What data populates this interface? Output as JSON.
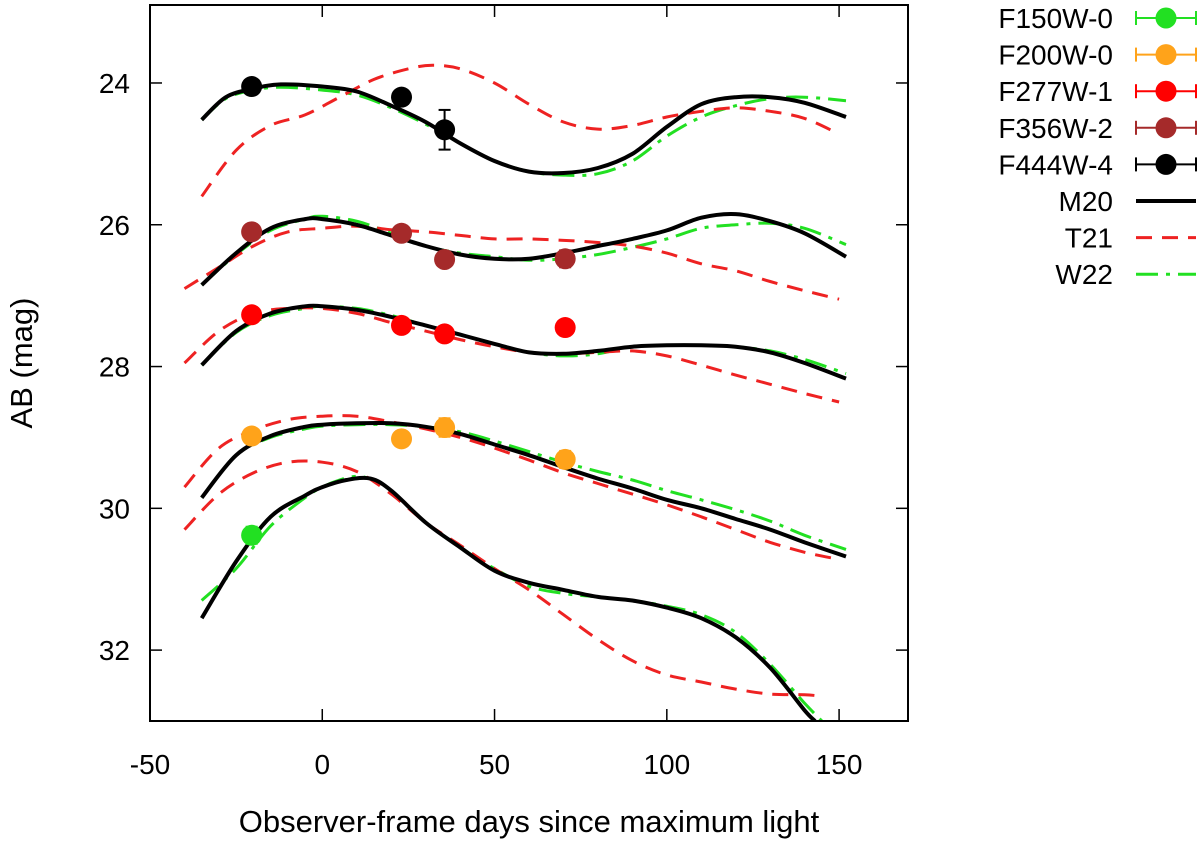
{
  "chart_data": {
    "type": "line",
    "title": "",
    "xlabel": "Observer-frame days since maximum light",
    "ylabel": "AB (mag)",
    "xlim": [
      -50,
      170
    ],
    "ylim": [
      33,
      22.9
    ],
    "y_inverted": true,
    "grid": false,
    "legend_position": "outside-right-top",
    "x_ticks": [
      -50,
      0,
      50,
      100,
      150
    ],
    "x_tick_labels": [
      "-50",
      "0",
      "50",
      "100",
      "150"
    ],
    "y_ticks": [
      24,
      26,
      28,
      30,
      32
    ],
    "y_tick_labels": [
      "24",
      "26",
      "28",
      "30",
      "32"
    ],
    "observations": [
      {
        "name": "F150W-0",
        "color": "#22e022",
        "points": [
          {
            "x": -20.5,
            "y": 30.38,
            "err": 0.12
          }
        ]
      },
      {
        "name": "F200W-0",
        "color": "#ffa31a",
        "points": [
          {
            "x": -20.5,
            "y": 28.98,
            "err": 0.05
          },
          {
            "x": 23,
            "y": 29.02,
            "err": 0.06
          },
          {
            "x": 35.5,
            "y": 28.86,
            "err": 0.13
          },
          {
            "x": 70.5,
            "y": 29.31,
            "err": 0.12
          }
        ]
      },
      {
        "name": "F277W-1",
        "color": "#ff0000",
        "points": [
          {
            "x": -20.5,
            "y": 27.27,
            "err": 0.05
          },
          {
            "x": 23,
            "y": 27.42,
            "err": 0.06
          },
          {
            "x": 35.5,
            "y": 27.54,
            "err": 0.07
          },
          {
            "x": 70.5,
            "y": 27.45,
            "err": 0.1
          }
        ]
      },
      {
        "name": "F356W-2",
        "color": "#a52a2a",
        "points": [
          {
            "x": -20.5,
            "y": 26.1,
            "err": 0.05
          },
          {
            "x": 23,
            "y": 26.12,
            "err": 0.06
          },
          {
            "x": 35.5,
            "y": 26.49,
            "err": 0.1
          },
          {
            "x": 70.5,
            "y": 26.48,
            "err": 0.12
          }
        ]
      },
      {
        "name": "F444W-4",
        "color": "#000000",
        "points": [
          {
            "x": -20.5,
            "y": 24.05,
            "err": 0.05
          },
          {
            "x": 23,
            "y": 24.2,
            "err": 0.06
          },
          {
            "x": 35.5,
            "y": 24.66,
            "err": 0.28
          }
        ]
      }
    ],
    "models": [
      {
        "name": "M20",
        "color": "#000000",
        "style": "solid",
        "curves": [
          {
            "x": [
              -35,
              -28,
              -20,
              -12,
              0,
              10,
              20,
              30,
              40,
              50,
              60,
              70,
              80,
              90,
              100,
              110,
              120,
              130,
              140,
              152
            ],
            "y": [
              24.52,
              24.2,
              24.08,
              24.02,
              24.05,
              24.12,
              24.32,
              24.55,
              24.85,
              25.1,
              25.25,
              25.27,
              25.2,
              25.0,
              24.62,
              24.3,
              24.2,
              24.2,
              24.28,
              24.48
            ]
          },
          {
            "x": [
              -35,
              -25,
              -15,
              -5,
              0,
              10,
              20,
              30,
              40,
              50,
              60,
              70,
              80,
              90,
              100,
              110,
              120,
              130,
              140,
              152
            ],
            "y": [
              26.85,
              26.4,
              26.05,
              25.92,
              25.92,
              26.0,
              26.15,
              26.3,
              26.42,
              26.48,
              26.48,
              26.4,
              26.3,
              26.2,
              26.08,
              25.9,
              25.85,
              25.95,
              26.12,
              26.45
            ]
          },
          {
            "x": [
              -35,
              -25,
              -15,
              -5,
              0,
              10,
              20,
              30,
              40,
              50,
              60,
              70,
              80,
              90,
              100,
              110,
              120,
              130,
              140,
              152
            ],
            "y": [
              27.98,
              27.5,
              27.25,
              27.15,
              27.15,
              27.2,
              27.3,
              27.42,
              27.55,
              27.68,
              27.8,
              27.82,
              27.78,
              27.72,
              27.7,
              27.7,
              27.72,
              27.8,
              27.95,
              28.17
            ]
          },
          {
            "x": [
              -35,
              -25,
              -15,
              -5,
              0,
              10,
              20,
              30,
              40,
              50,
              60,
              70,
              80,
              90,
              100,
              110,
              120,
              130,
              140,
              152
            ],
            "y": [
              29.85,
              29.25,
              28.98,
              28.85,
              28.82,
              28.8,
              28.8,
              28.85,
              28.95,
              29.1,
              29.25,
              29.42,
              29.58,
              29.72,
              29.88,
              30.0,
              30.15,
              30.3,
              30.48,
              30.68
            ]
          },
          {
            "x": [
              -35,
              -25,
              -15,
              -5,
              0,
              7,
              14,
              20,
              30,
              40,
              50,
              60,
              70,
              80,
              90,
              100,
              110,
              120,
              130,
              140,
              143
            ],
            "y": [
              31.55,
              30.75,
              30.12,
              29.82,
              29.7,
              29.6,
              29.58,
              29.75,
              30.2,
              30.55,
              30.88,
              31.05,
              31.15,
              31.25,
              31.3,
              31.4,
              31.55,
              31.82,
              32.25,
              32.85,
              33.0
            ]
          }
        ]
      },
      {
        "name": "T21",
        "color": "#ee2222",
        "style": "dashed",
        "curves": [
          {
            "x": [
              -35,
              -25,
              -15,
              -5,
              5,
              15,
              25,
              32,
              40,
              50,
              60,
              70,
              80,
              90,
              100,
              110,
              120,
              130,
              140,
              150
            ],
            "y": [
              25.6,
              24.95,
              24.6,
              24.45,
              24.2,
              23.95,
              23.8,
              23.75,
              23.8,
              24.0,
              24.3,
              24.55,
              24.65,
              24.6,
              24.48,
              24.4,
              24.35,
              24.4,
              24.5,
              24.72
            ]
          },
          {
            "x": [
              -40,
              -30,
              -20,
              -10,
              0,
              10,
              20,
              30,
              40,
              50,
              60,
              70,
              80,
              90,
              100,
              110,
              120,
              130,
              140,
              150
            ],
            "y": [
              26.9,
              26.6,
              26.3,
              26.1,
              26.05,
              26.02,
              26.07,
              26.1,
              26.15,
              26.2,
              26.2,
              26.22,
              26.25,
              26.3,
              26.4,
              26.55,
              26.65,
              26.8,
              26.93,
              27.05
            ]
          },
          {
            "x": [
              -40,
              -30,
              -20,
              -10,
              0,
              10,
              20,
              30,
              40,
              50,
              60,
              70,
              80,
              90,
              100,
              110,
              120,
              130,
              140,
              150
            ],
            "y": [
              27.95,
              27.5,
              27.25,
              27.18,
              27.18,
              27.25,
              27.38,
              27.5,
              27.62,
              27.72,
              27.8,
              27.82,
              27.8,
              27.78,
              27.85,
              27.98,
              28.12,
              28.25,
              28.38,
              28.5
            ]
          },
          {
            "x": [
              -40,
              -30,
              -20,
              -10,
              0,
              10,
              20,
              30,
              40,
              50,
              60,
              70,
              80,
              90,
              100,
              110,
              120,
              130,
              140,
              150
            ],
            "y": [
              29.7,
              29.15,
              28.9,
              28.75,
              28.7,
              28.7,
              28.78,
              28.88,
              29.0,
              29.15,
              29.32,
              29.5,
              29.65,
              29.8,
              29.95,
              30.12,
              30.3,
              30.48,
              30.62,
              30.72
            ]
          },
          {
            "x": [
              -40,
              -30,
              -20,
              -10,
              0,
              10,
              20,
              30,
              40,
              50,
              60,
              70,
              80,
              90,
              100,
              110,
              120,
              130,
              140,
              145
            ],
            "y": [
              30.3,
              29.8,
              29.5,
              29.35,
              29.35,
              29.48,
              29.8,
              30.2,
              30.52,
              30.85,
              31.15,
              31.5,
              31.85,
              32.15,
              32.35,
              32.45,
              32.55,
              32.62,
              32.63,
              32.65
            ]
          }
        ]
      },
      {
        "name": "W22",
        "color": "#22e022",
        "style": "dashdot",
        "curves": [
          {
            "x": [
              -35,
              -28,
              -20,
              -12,
              0,
              10,
              20,
              30,
              40,
              50,
              60,
              70,
              80,
              90,
              100,
              110,
              120,
              130,
              140,
              152
            ],
            "y": [
              24.52,
              24.22,
              24.1,
              24.06,
              24.1,
              24.17,
              24.35,
              24.58,
              24.85,
              25.1,
              25.25,
              25.3,
              25.28,
              25.1,
              24.75,
              24.48,
              24.32,
              24.22,
              24.2,
              24.25
            ]
          },
          {
            "x": [
              -35,
              -25,
              -15,
              -5,
              0,
              10,
              20,
              30,
              40,
              50,
              60,
              70,
              80,
              90,
              100,
              110,
              120,
              130,
              140,
              152
            ],
            "y": [
              26.85,
              26.42,
              26.08,
              25.92,
              25.88,
              25.95,
              26.12,
              26.3,
              26.4,
              26.45,
              26.5,
              26.48,
              26.42,
              26.32,
              26.2,
              26.05,
              26.0,
              25.98,
              26.05,
              26.28
            ]
          },
          {
            "x": [
              -35,
              -25,
              -15,
              -5,
              0,
              10,
              20,
              30,
              40,
              50,
              60,
              70,
              80,
              90,
              100,
              110,
              120,
              130,
              140,
              152
            ],
            "y": [
              27.98,
              27.52,
              27.28,
              27.18,
              27.15,
              27.18,
              27.28,
              27.42,
              27.55,
              27.68,
              27.8,
              27.85,
              27.82,
              27.72,
              27.7,
              27.7,
              27.72,
              27.78,
              27.9,
              28.1
            ]
          },
          {
            "x": [
              -35,
              -25,
              -15,
              -5,
              0,
              10,
              20,
              30,
              40,
              50,
              60,
              70,
              80,
              90,
              100,
              110,
              120,
              130,
              140,
              152
            ],
            "y": [
              29.85,
              29.25,
              29.0,
              28.88,
              28.84,
              28.82,
              28.82,
              28.85,
              28.92,
              29.05,
              29.2,
              29.35,
              29.48,
              29.6,
              29.75,
              29.88,
              30.02,
              30.18,
              30.38,
              30.58
            ]
          },
          {
            "x": [
              -35,
              -25,
              -15,
              -5,
              0,
              5,
              10,
              15,
              20,
              30,
              40,
              50,
              60,
              70,
              80,
              90,
              100,
              110,
              120,
              130,
              140,
              145
            ],
            "y": [
              31.3,
              30.85,
              30.25,
              29.85,
              29.7,
              29.6,
              29.55,
              29.6,
              29.75,
              30.2,
              30.55,
              30.85,
              31.1,
              31.2,
              31.25,
              31.3,
              31.38,
              31.5,
              31.75,
              32.2,
              32.75,
              33.0
            ]
          }
        ]
      }
    ]
  }
}
